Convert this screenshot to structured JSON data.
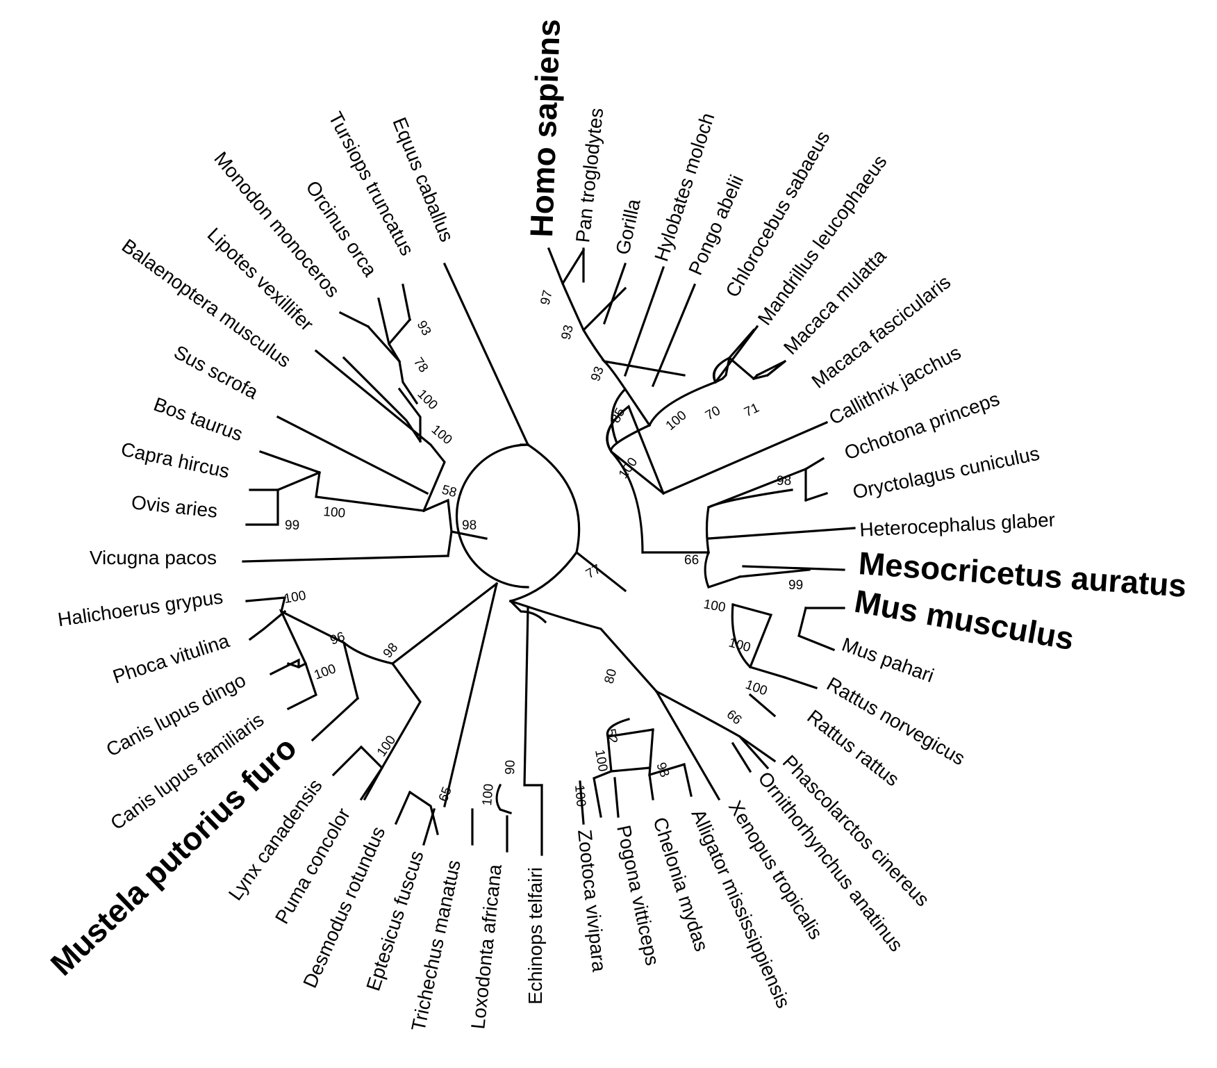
{
  "diagram": {
    "type": "circular phylogenetic tree",
    "highlight_colors": {
      "homo": "#d42a1e",
      "mesocricetus": "#1a6eb4",
      "mus": "#2aa43a",
      "mustela": "#a77a1a"
    },
    "taxa": [
      "Equus caballus",
      "Tursiops truncatus",
      "Orcinus orca",
      "Monodon monoceros",
      "Lipotes vexillifer",
      "Balaenoptera musculus",
      "Sus scrofa",
      "Bos taurus",
      "Capra hircus",
      "Ovis aries",
      "Vicugna pacos",
      "Halichoerus grypus",
      "Phoca vitulina",
      "Canis lupus dingo",
      "Canis lupus familiaris",
      "Mustela putorius furo",
      "Lynx canadensis",
      "Puma concolor",
      "Desmodus rotundus",
      "Eptesicus fuscus",
      "Trichechus manatus",
      "Loxodonta africana",
      "Echinops telfairi",
      "Zootoca vivipara",
      "Pogona vitticeps",
      "Chelonia mydas",
      "Alligator mississippiensis",
      "Xenopus tropicalis",
      "Ornithorhynchus anatinus",
      "Phascolarctos cinereus",
      "Rattus rattus",
      "Rattus norvegicus",
      "Mus pahari",
      "Mus musculus",
      "Mesocricetus auratus",
      "Heterocephalus glaber",
      "Oryctolagus cuniculus",
      "Ochotona princeps",
      "Callithrix jacchus",
      "Macaca fascicularis",
      "Macaca mulatta",
      "Mandrillus leucophaeus",
      "Chlorocebus sabaeus",
      "Pongo abelii",
      "Hylobates moloch",
      "Gorilla",
      "Pan troglodytes",
      "Homo sapiens"
    ],
    "support_values": {
      "s97": "97",
      "s93a": "93",
      "s93b": "93",
      "s85": "85",
      "s100a": "100",
      "s100b": "100",
      "s70": "70",
      "s71": "71",
      "s98a": "98",
      "s66a": "66",
      "s99a": "99",
      "s100c": "100",
      "s100d": "100",
      "s100e": "100",
      "s77": "77",
      "s80": "80",
      "s66b": "66",
      "s52": "52",
      "s100f": "100",
      "s98b": "98",
      "s100g": "100",
      "s90": "90",
      "s100h": "100",
      "s65": "65",
      "s100i": "100",
      "s98c": "98",
      "s96": "96",
      "s100j": "100",
      "s100k": "100",
      "s98d": "98",
      "s58": "58",
      "s100l": "100",
      "s99b": "99",
      "s93c": "93",
      "s78": "78",
      "s100m": "100",
      "s100n": "100"
    }
  }
}
